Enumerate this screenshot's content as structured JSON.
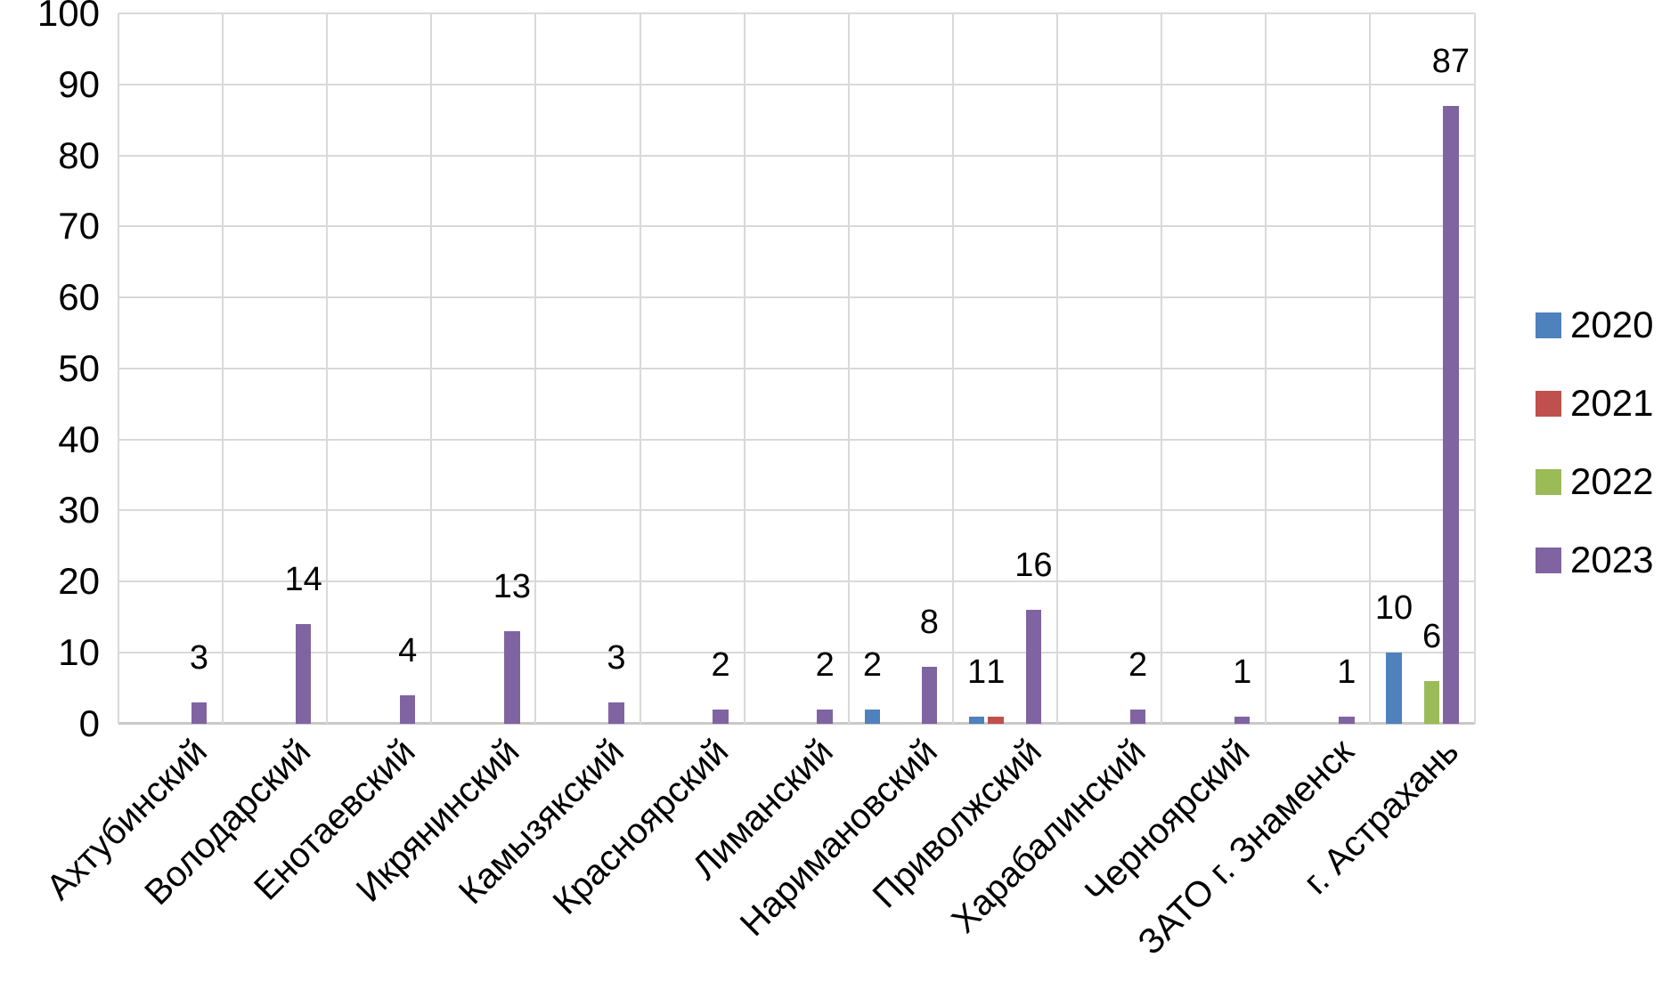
{
  "chart_data": {
    "type": "bar",
    "title": "",
    "xlabel": "",
    "ylabel": "",
    "categories": [
      "Ахтубинский",
      "Володарский",
      "Енотаевский",
      "Икрянинский",
      "Камызякский",
      "Красноярский",
      "Лиманский",
      "Наримановский",
      "Приволжский",
      "Харабалинский",
      "Черноярский",
      "ЗАТО г. Знаменск",
      "г. Астрахань"
    ],
    "series": [
      {
        "name": "2020",
        "color": "#4F81BD",
        "values": [
          0,
          0,
          0,
          0,
          0,
          0,
          0,
          2,
          1,
          0,
          0,
          0,
          10
        ]
      },
      {
        "name": "2021",
        "color": "#C0504D",
        "values": [
          0,
          0,
          0,
          0,
          0,
          0,
          0,
          0,
          1,
          0,
          0,
          0,
          0
        ]
      },
      {
        "name": "2022",
        "color": "#9BBB59",
        "values": [
          0,
          0,
          0,
          0,
          0,
          0,
          0,
          0,
          0,
          0,
          0,
          0,
          6
        ]
      },
      {
        "name": "2023",
        "color": "#8064A2",
        "values": [
          3,
          14,
          4,
          13,
          3,
          2,
          2,
          8,
          16,
          2,
          1,
          1,
          87
        ]
      }
    ],
    "ylim": [
      0,
      100
    ],
    "ytick_step": 10,
    "ytick_labels": [
      "0",
      "10",
      "20",
      "30",
      "40",
      "50",
      "60",
      "70",
      "80",
      "90",
      "100"
    ],
    "grid": "on",
    "legend_position": "right",
    "data_labels": "shown above non-zero bars"
  }
}
